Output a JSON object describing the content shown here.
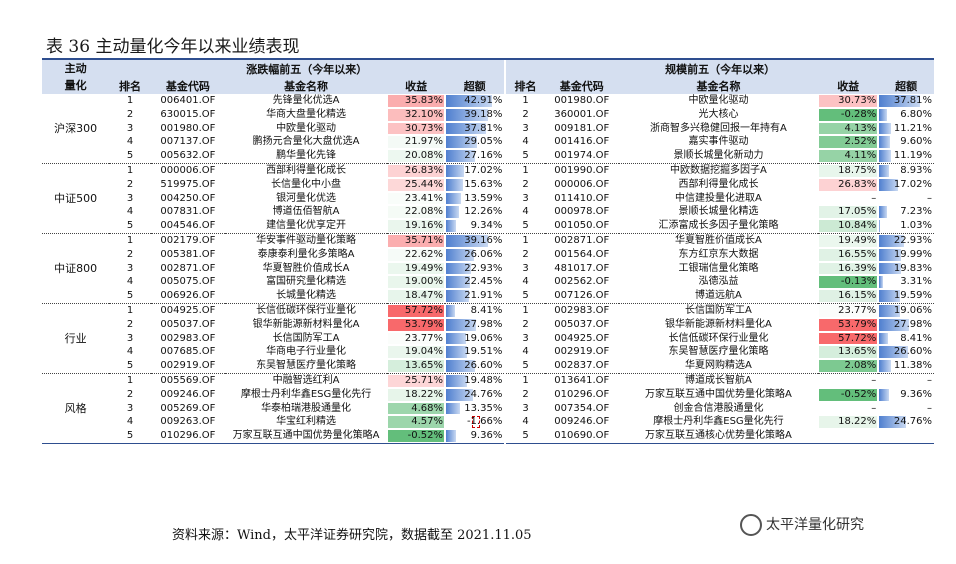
{
  "title": "表 36  主动量化今年以来业绩表现",
  "headers": {
    "group": "主动\n量化",
    "left_title": "涨跌幅前五（今年以来）",
    "right_title": "规模前五（今年以来）",
    "cols": [
      "排名",
      "基金代码",
      "基金名称",
      "收益",
      "超额"
    ]
  },
  "groups": [
    {
      "name": "沪深300",
      "left": [
        {
          "rank": "1",
          "code": "006401.OF",
          "name": "先锋量化优选A",
          "ret": "35.83%",
          "exc": "42.91%",
          "r": 35.83,
          "e": 42.91
        },
        {
          "rank": "2",
          "code": "630015.OF",
          "name": "华商大盘量化精选",
          "ret": "32.10%",
          "exc": "39.18%",
          "r": 32.1,
          "e": 39.18
        },
        {
          "rank": "3",
          "code": "001980.OF",
          "name": "中欧量化驱动",
          "ret": "30.73%",
          "exc": "37.81%",
          "r": 30.73,
          "e": 37.81
        },
        {
          "rank": "4",
          "code": "007137.OF",
          "name": "鹏扬元合量化大盘优选A",
          "ret": "21.97%",
          "exc": "29.05%",
          "r": 21.97,
          "e": 29.05
        },
        {
          "rank": "5",
          "code": "005632.OF",
          "name": "鹏华量化先锋",
          "ret": "20.08%",
          "exc": "27.16%",
          "r": 20.08,
          "e": 27.16
        }
      ],
      "right": [
        {
          "rank": "1",
          "code": "001980.OF",
          "name": "中欧量化驱动",
          "ret": "30.73%",
          "exc": "37.81%",
          "r": 30.73,
          "e": 37.81
        },
        {
          "rank": "2",
          "code": "360001.OF",
          "name": "光大核心",
          "ret": "-0.28%",
          "exc": "6.80%",
          "r": -0.28,
          "e": 6.8
        },
        {
          "rank": "3",
          "code": "009181.OF",
          "name": "浙商智多兴稳健回报一年持有A",
          "ret": "4.13%",
          "exc": "11.21%",
          "r": 4.13,
          "e": 11.21
        },
        {
          "rank": "4",
          "code": "001416.OF",
          "name": "嘉实事件驱动",
          "ret": "2.52%",
          "exc": "9.60%",
          "r": 2.52,
          "e": 9.6
        },
        {
          "rank": "5",
          "code": "001974.OF",
          "name": "景顺长城量化新动力",
          "ret": "4.11%",
          "exc": "11.19%",
          "r": 4.11,
          "e": 11.19
        }
      ]
    },
    {
      "name": "中证500",
      "left": [
        {
          "rank": "1",
          "code": "000006.OF",
          "name": "西部利得量化成长",
          "ret": "26.83%",
          "exc": "17.02%",
          "r": 26.83,
          "e": 17.02
        },
        {
          "rank": "2",
          "code": "519975.OF",
          "name": "长信量化中小盘",
          "ret": "25.44%",
          "exc": "15.63%",
          "r": 25.44,
          "e": 15.63
        },
        {
          "rank": "3",
          "code": "004250.OF",
          "name": "银河量化优选",
          "ret": "23.41%",
          "exc": "13.59%",
          "r": 23.41,
          "e": 13.59
        },
        {
          "rank": "4",
          "code": "007831.OF",
          "name": "博道伍佰智航A",
          "ret": "22.08%",
          "exc": "12.26%",
          "r": 22.08,
          "e": 12.26
        },
        {
          "rank": "5",
          "code": "004546.OF",
          "name": "建信量化优享定开",
          "ret": "19.16%",
          "exc": "9.34%",
          "r": 19.16,
          "e": 9.34
        }
      ],
      "right": [
        {
          "rank": "1",
          "code": "001990.OF",
          "name": "中欧数据挖掘多因子A",
          "ret": "18.75%",
          "exc": "8.93%",
          "r": 18.75,
          "e": 8.93
        },
        {
          "rank": "2",
          "code": "000006.OF",
          "name": "西部利得量化成长",
          "ret": "26.83%",
          "exc": "17.02%",
          "r": 26.83,
          "e": 17.02
        },
        {
          "rank": "3",
          "code": "011410.OF",
          "name": "中信建投量化进取A",
          "ret": "–",
          "exc": "–",
          "r": null,
          "e": null
        },
        {
          "rank": "4",
          "code": "000978.OF",
          "name": "景顺长城量化精选",
          "ret": "17.05%",
          "exc": "7.23%",
          "r": 17.05,
          "e": 7.23
        },
        {
          "rank": "5",
          "code": "001050.OF",
          "name": "汇添富成长多因子量化策略",
          "ret": "10.84%",
          "exc": "1.03%",
          "r": 10.84,
          "e": 1.03
        }
      ]
    },
    {
      "name": "中证800",
      "left": [
        {
          "rank": "1",
          "code": "002179.OF",
          "name": "华安事件驱动量化策略",
          "ret": "35.71%",
          "exc": "39.16%",
          "r": 35.71,
          "e": 39.16
        },
        {
          "rank": "2",
          "code": "005381.OF",
          "name": "泰康泰利量化多策略A",
          "ret": "22.62%",
          "exc": "26.06%",
          "r": 22.62,
          "e": 26.06
        },
        {
          "rank": "3",
          "code": "002871.OF",
          "name": "华夏智胜价值成长A",
          "ret": "19.49%",
          "exc": "22.93%",
          "r": 19.49,
          "e": 22.93
        },
        {
          "rank": "4",
          "code": "005075.OF",
          "name": "富国研究量化精选",
          "ret": "19.00%",
          "exc": "22.45%",
          "r": 19.0,
          "e": 22.45
        },
        {
          "rank": "5",
          "code": "006926.OF",
          "name": "长城量化精选",
          "ret": "18.47%",
          "exc": "21.91%",
          "r": 18.47,
          "e": 21.91
        }
      ],
      "right": [
        {
          "rank": "1",
          "code": "002871.OF",
          "name": "华夏智胜价值成长A",
          "ret": "19.49%",
          "exc": "22.93%",
          "r": 19.49,
          "e": 22.93
        },
        {
          "rank": "2",
          "code": "001564.OF",
          "name": "东方红京东大数据",
          "ret": "16.55%",
          "exc": "19.99%",
          "r": 16.55,
          "e": 19.99
        },
        {
          "rank": "3",
          "code": "481017.OF",
          "name": "工银瑞信量化策略",
          "ret": "16.39%",
          "exc": "19.83%",
          "r": 16.39,
          "e": 19.83
        },
        {
          "rank": "4",
          "code": "002562.OF",
          "name": "泓德泓益",
          "ret": "-0.13%",
          "exc": "3.31%",
          "r": -0.13,
          "e": 3.31
        },
        {
          "rank": "5",
          "code": "007126.OF",
          "name": "博道远航A",
          "ret": "16.15%",
          "exc": "19.59%",
          "r": 16.15,
          "e": 19.59
        }
      ]
    },
    {
      "name": "行业",
      "left": [
        {
          "rank": "1",
          "code": "004925.OF",
          "name": "长信低碳环保行业量化",
          "ret": "57.72%",
          "exc": "8.41%",
          "r": 57.72,
          "e": 8.41
        },
        {
          "rank": "2",
          "code": "005037.OF",
          "name": "银华新能源新材料量化A",
          "ret": "53.79%",
          "exc": "27.98%",
          "r": 53.79,
          "e": 27.98
        },
        {
          "rank": "3",
          "code": "002983.OF",
          "name": "长信国防军工A",
          "ret": "23.77%",
          "exc": "19.06%",
          "r": 23.77,
          "e": 19.06
        },
        {
          "rank": "4",
          "code": "007685.OF",
          "name": "华商电子行业量化",
          "ret": "19.04%",
          "exc": "19.51%",
          "r": 19.04,
          "e": 19.51
        },
        {
          "rank": "5",
          "code": "002919.OF",
          "name": "东吴智慧医疗量化策略",
          "ret": "13.65%",
          "exc": "26.60%",
          "r": 13.65,
          "e": 26.6
        }
      ],
      "right": [
        {
          "rank": "1",
          "code": "002983.OF",
          "name": "长信国防军工A",
          "ret": "23.77%",
          "exc": "19.06%",
          "r": 23.77,
          "e": 19.06
        },
        {
          "rank": "2",
          "code": "005037.OF",
          "name": "银华新能源新材料量化A",
          "ret": "53.79%",
          "exc": "27.98%",
          "r": 53.79,
          "e": 27.98
        },
        {
          "rank": "3",
          "code": "004925.OF",
          "name": "长信低碳环保行业量化",
          "ret": "57.72%",
          "exc": "8.41%",
          "r": 57.72,
          "e": 8.41
        },
        {
          "rank": "4",
          "code": "002919.OF",
          "name": "东吴智慧医疗量化策略",
          "ret": "13.65%",
          "exc": "26.60%",
          "r": 13.65,
          "e": 26.6
        },
        {
          "rank": "5",
          "code": "002837.OF",
          "name": "华夏网购精选A",
          "ret": "2.08%",
          "exc": "11.38%",
          "r": 2.08,
          "e": 11.38
        }
      ]
    },
    {
      "name": "风格",
      "left": [
        {
          "rank": "1",
          "code": "005569.OF",
          "name": "中融智选红利A",
          "ret": "25.71%",
          "exc": "19.48%",
          "r": 25.71,
          "e": 19.48
        },
        {
          "rank": "2",
          "code": "009246.OF",
          "name": "摩根士丹利华鑫ESG量化先行",
          "ret": "18.22%",
          "exc": "24.76%",
          "r": 18.22,
          "e": 24.76
        },
        {
          "rank": "3",
          "code": "005269.OF",
          "name": "华泰柏瑞港股通量化",
          "ret": "4.68%",
          "exc": "13.35%",
          "r": 4.68,
          "e": 13.35
        },
        {
          "rank": "4",
          "code": "009263.OF",
          "name": "华宝红利精选",
          "ret": "4.57%",
          "exc": "-1.66%",
          "r": 4.57,
          "e": -1.66
        },
        {
          "rank": "5",
          "code": "010296.OF",
          "name": "万家互联互通中国优势量化策略A",
          "ret": "-0.52%",
          "exc": "9.36%",
          "r": -0.52,
          "e": 9.36
        }
      ],
      "right": [
        {
          "rank": "1",
          "code": "013641.OF",
          "name": "博道成长智航A",
          "ret": "–",
          "exc": "–",
          "r": null,
          "e": null
        },
        {
          "rank": "2",
          "code": "010296.OF",
          "name": "万家互联互通中国优势量化策略A",
          "ret": "-0.52%",
          "exc": "9.36%",
          "r": -0.52,
          "e": 9.36
        },
        {
          "rank": "3",
          "code": "007354.OF",
          "name": "创金合信港股通量化",
          "ret": "–",
          "exc": "–",
          "r": null,
          "e": null
        },
        {
          "rank": "4",
          "code": "009246.OF",
          "name": "摩根士丹利华鑫ESG量化先行",
          "ret": "18.22%",
          "exc": "24.76%",
          "r": 18.22,
          "e": 24.76
        },
        {
          "rank": "5",
          "code": "010690.OF",
          "name": "万家互联互通核心优势量化策略A",
          "ret": "",
          "exc": "",
          "r": null,
          "e": null
        }
      ]
    }
  ],
  "source": "资料来源：Wind，太平洋证券研究院，数据截至 2021.11.05",
  "watermark": "太平洋量化研究",
  "colors": {
    "red": "#f8696b",
    "green": "#63be7b",
    "bar": "#5b8bd0",
    "header": "#d5dff0",
    "rule": "#2e4e8f"
  }
}
